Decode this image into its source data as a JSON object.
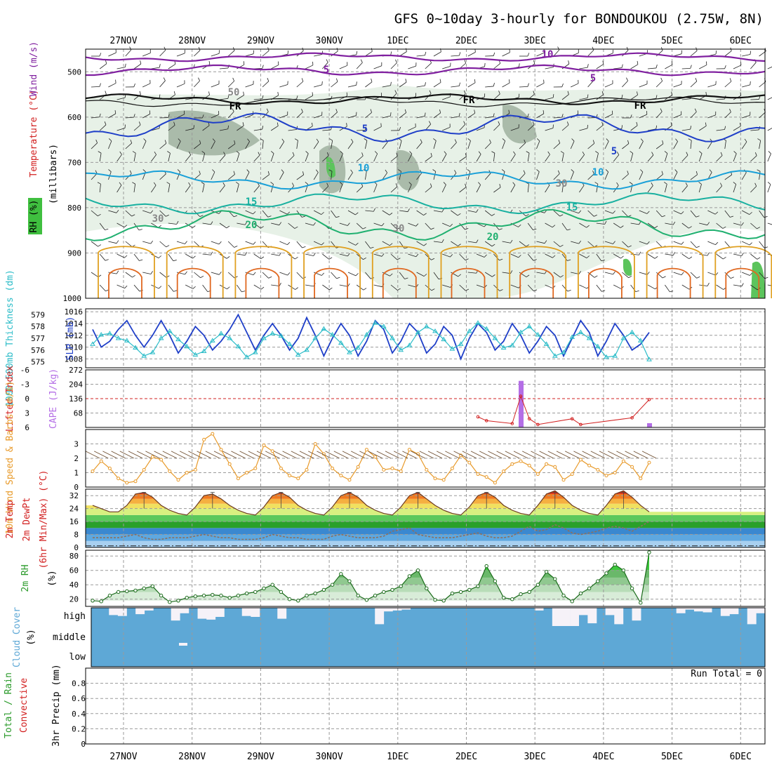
{
  "title": "GFS 0~10day 3-hourly for BONDOUKOU (2.75W, 8N)",
  "dates": [
    "27NOV",
    "28NOV",
    "29NOV",
    "30NOV",
    "1DEC",
    "2DEC",
    "3DEC",
    "4DEC",
    "5DEC",
    "6DEC"
  ],
  "colors": {
    "slp": "#1f3fc8",
    "thickness": "#2bbcc8",
    "cape": "#b46ee6",
    "lifted": "#d22020",
    "wind10": "#e89a2a",
    "rh2m": "#2a9a2a",
    "cloud": "#5ea8d6",
    "precip_total": "#2a9a2a",
    "precip_conv": "#d22020",
    "temp_label": "#d22020",
    "wind_label": "#8020a0",
    "rh_label": "#2a9a2a"
  },
  "chart_data": [
    {
      "type": "heatmap",
      "name": "upper-air cross section",
      "ylabel": "(millibars)",
      "axis_labels": {
        "rh": "RH (%)",
        "temperature": "Temperature (°C)",
        "wind": "Wind (m/s)"
      },
      "levels": [
        500,
        600,
        700,
        800,
        900,
        1000
      ],
      "ylim": [
        1000,
        450
      ],
      "contour_labels": [
        "10",
        "5",
        "5",
        "FR",
        "FR",
        "FR",
        "5",
        "5",
        "10",
        "10",
        "15",
        "15",
        "20",
        "20",
        "30",
        "30",
        "30",
        "50"
      ]
    },
    {
      "type": "line",
      "name": "thickness and SLP",
      "ylabel_left": "1000-500mb Thickness (dm)",
      "ylabel_right": "SLP (mb)",
      "left_ticks": [
        575,
        576,
        577,
        578,
        579
      ],
      "right_ticks": [
        1008,
        1010,
        1012,
        1014,
        1016
      ],
      "left_range": [
        574.5,
        579.5
      ],
      "right_range": [
        1006.5,
        1016.5
      ],
      "series": [
        {
          "name": "SLP",
          "axis": "right",
          "values": [
            1013,
            1010,
            1011,
            1013,
            1014.5,
            1012,
            1010,
            1012,
            1014.5,
            1012,
            1009,
            1011,
            1013.5,
            1012,
            1009.5,
            1011,
            1013,
            1015.5,
            1012.5,
            1009.5,
            1012,
            1014,
            1012,
            1009.5,
            1011.5,
            1015,
            1012,
            1008.5,
            1011.5,
            1014,
            1012,
            1008.5,
            1011,
            1014.5,
            1013,
            1009,
            1011,
            1014,
            1012.5,
            1009,
            1010.5,
            1013.5,
            1012,
            1008,
            1011.5,
            1014,
            1012.5,
            1009.5,
            1011,
            1014,
            1012,
            1009,
            1011,
            1013.5,
            1012,
            1008.5,
            1011.5,
            1014.5,
            1012.5,
            1008.5,
            1011,
            1014,
            1012,
            1009.5,
            1010.5,
            1012.5
          ]
        },
        {
          "name": "Thickness",
          "axis": "left",
          "values": [
            576.5,
            577.3,
            577.4,
            577.0,
            576.8,
            576.2,
            575.5,
            575.8,
            577.0,
            577.6,
            576.9,
            576.3,
            575.6,
            575.9,
            576.8,
            577.4,
            577.0,
            576.3,
            575.4,
            575.8,
            577.0,
            577.4,
            577.2,
            576.5,
            575.6,
            576.0,
            577.0,
            577.8,
            577.3,
            576.6,
            575.8,
            576.2,
            577.3,
            578.3,
            578.0,
            577.0,
            576.0,
            576.4,
            577.5,
            578.0,
            577.6,
            576.9,
            576.1,
            576.5,
            577.6,
            578.3,
            577.8,
            577.0,
            576.2,
            576.4,
            577.5,
            578.0,
            577.3,
            576.5,
            575.5,
            575.8,
            577.1,
            577.5,
            577.0,
            576.3,
            575.4,
            575.5,
            577.0,
            577.5,
            576.8,
            575.2
          ]
        }
      ]
    },
    {
      "type": "bar",
      "name": "CAPE and lifted index",
      "ylabel_left": "Lifted Index",
      "ylabel_right": "CAPE (J/kg)",
      "left_ticks": [
        "-6",
        "-3",
        "0",
        "3",
        "6"
      ],
      "right_ticks": [
        "68",
        "136",
        "204",
        "272"
      ],
      "cape_range": [
        0,
        272
      ],
      "cape": [
        {
          "step": 50,
          "value": 220
        },
        {
          "step": 65,
          "value": 20
        }
      ],
      "lifted_index": {
        "points": [
          [
            45,
            3.8
          ],
          [
            46,
            4.6
          ],
          [
            49,
            5.2
          ],
          [
            50,
            -0.5
          ],
          [
            51,
            4.2
          ],
          [
            52,
            5.4
          ],
          [
            56,
            4.2
          ],
          [
            57,
            5.4
          ],
          [
            63,
            4.0
          ],
          [
            65,
            0.2
          ]
        ],
        "range": [
          -6,
          6
        ]
      }
    },
    {
      "type": "line",
      "name": "10m wind speed",
      "ylabel": "10m Wind Speed & Barbs (m/s)",
      "ticks": [
        0,
        1,
        2,
        3
      ],
      "ylim": [
        0,
        4
      ],
      "series": [
        {
          "name": "10m Wind Speed",
          "values": [
            1.1,
            1.8,
            1.3,
            0.6,
            0.3,
            0.4,
            1.2,
            2.1,
            1.9,
            1.1,
            0.5,
            1.0,
            1.2,
            3.3,
            3.7,
            2.6,
            1.6,
            0.6,
            1.0,
            1.3,
            2.9,
            2.5,
            1.3,
            0.8,
            0.6,
            1.2,
            3.0,
            2.3,
            1.3,
            0.8,
            0.5,
            1.4,
            2.6,
            2.1,
            1.2,
            1.3,
            1.1,
            2.6,
            2.3,
            1.2,
            0.6,
            0.5,
            1.3,
            2.2,
            1.7,
            0.9,
            0.7,
            0.3,
            1.1,
            1.6,
            1.8,
            1.5,
            0.9,
            1.6,
            1.4,
            0.5,
            0.9,
            1.9,
            1.5,
            1.2,
            0.8,
            1.0,
            1.8,
            1.4,
            0.6,
            1.7
          ]
        }
      ]
    },
    {
      "type": "area",
      "name": "2m temperature and dew point",
      "ylabel": "2m Temp 2m DewPt (6hr Min/Max) (°C)",
      "ticks": [
        0,
        8,
        16,
        24,
        32
      ],
      "ylim": [
        0,
        36
      ],
      "series": [
        {
          "name": "2m Temp",
          "values": [
            26,
            24,
            22,
            22,
            26,
            33,
            34,
            31,
            26,
            23,
            21,
            20,
            25,
            32,
            33,
            30,
            26,
            23,
            21,
            20,
            25,
            32,
            34,
            31,
            26,
            23,
            21,
            20,
            25,
            32,
            34,
            31,
            26,
            23,
            21,
            20,
            25,
            32,
            34,
            30,
            26,
            23,
            21,
            20,
            25,
            32,
            34,
            31,
            26,
            23,
            21,
            20,
            26,
            33,
            35,
            31,
            26,
            23,
            21,
            20,
            26,
            33,
            35,
            31,
            26,
            22
          ]
        },
        {
          "name": "2m DewPt",
          "values": [
            6,
            6,
            6,
            6,
            7,
            8,
            6,
            5,
            5,
            6,
            6,
            6,
            7,
            8,
            7,
            6,
            6,
            5,
            5,
            5,
            6,
            8,
            7,
            6,
            6,
            5,
            5,
            5,
            7,
            8,
            7,
            6,
            6,
            6,
            7,
            10,
            11,
            12,
            8,
            7,
            6,
            6,
            6,
            7,
            8,
            9,
            7,
            6,
            6,
            7,
            10,
            13,
            10,
            11,
            14,
            12,
            9,
            8,
            9,
            10,
            12,
            13,
            12,
            10,
            13,
            16
          ]
        }
      ]
    },
    {
      "type": "area",
      "name": "2m relative humidity",
      "ylabel": "2m RH (%)",
      "ticks": [
        20,
        40,
        60,
        80
      ],
      "ylim": [
        10,
        88
      ],
      "series": [
        {
          "name": "2m RH",
          "values": [
            18,
            17,
            25,
            30,
            31,
            32,
            35,
            38,
            25,
            16,
            18,
            22,
            24,
            25,
            26,
            25,
            22,
            25,
            28,
            30,
            35,
            40,
            30,
            20,
            18,
            25,
            28,
            33,
            40,
            55,
            45,
            25,
            19,
            25,
            30,
            33,
            38,
            52,
            60,
            35,
            19,
            18,
            28,
            30,
            33,
            38,
            66,
            45,
            22,
            20,
            27,
            30,
            40,
            58,
            48,
            25,
            17,
            28,
            35,
            45,
            56,
            68,
            60,
            35,
            15,
            85
          ]
        }
      ]
    },
    {
      "type": "heatmap",
      "name": "cloud cover",
      "ylabel": "Cloud Cover (%)",
      "layer_labels": [
        "high",
        "middle",
        "low"
      ],
      "high_gap_fraction": [
        0.0,
        0.0,
        0.4,
        0.45,
        0.0,
        0.35,
        0.15,
        0.0,
        0.0,
        0.7,
        0.3,
        0.0,
        0.6,
        0.65,
        0.5,
        0.0,
        0.0,
        0.45,
        0.5,
        0.0,
        0.0,
        0.6,
        0.0,
        0.0,
        0.0,
        0.0,
        0.0,
        0.0,
        0.0,
        0.0,
        0.0,
        0.0,
        0.9,
        0.2,
        0.15,
        0.1,
        0.0,
        0.0,
        0.0,
        0.0,
        0.0,
        0.0,
        0.0,
        0.0,
        0.0,
        0.0,
        0.0,
        0.0,
        0.0,
        0.0,
        0.15,
        0.0,
        1.0,
        1.0,
        1.0,
        0.4,
        0.85,
        0.0,
        0.4,
        0.9,
        0.0,
        0.7,
        0.0,
        0.0,
        0.0,
        0.0,
        0.3,
        0.1,
        0.2,
        0.25,
        0.0,
        0.45,
        0.35,
        0.0,
        0.9,
        0.3
      ]
    },
    {
      "type": "bar",
      "name": "3hr precipitation",
      "ylabel": "Total / Rain Convective 3hr Precip (mm)",
      "ticks": [
        "0",
        "0.2",
        "0.4",
        "0.6",
        "0.8"
      ],
      "ylim": [
        0,
        1
      ],
      "run_total": "Run Total = 0",
      "values": []
    }
  ]
}
